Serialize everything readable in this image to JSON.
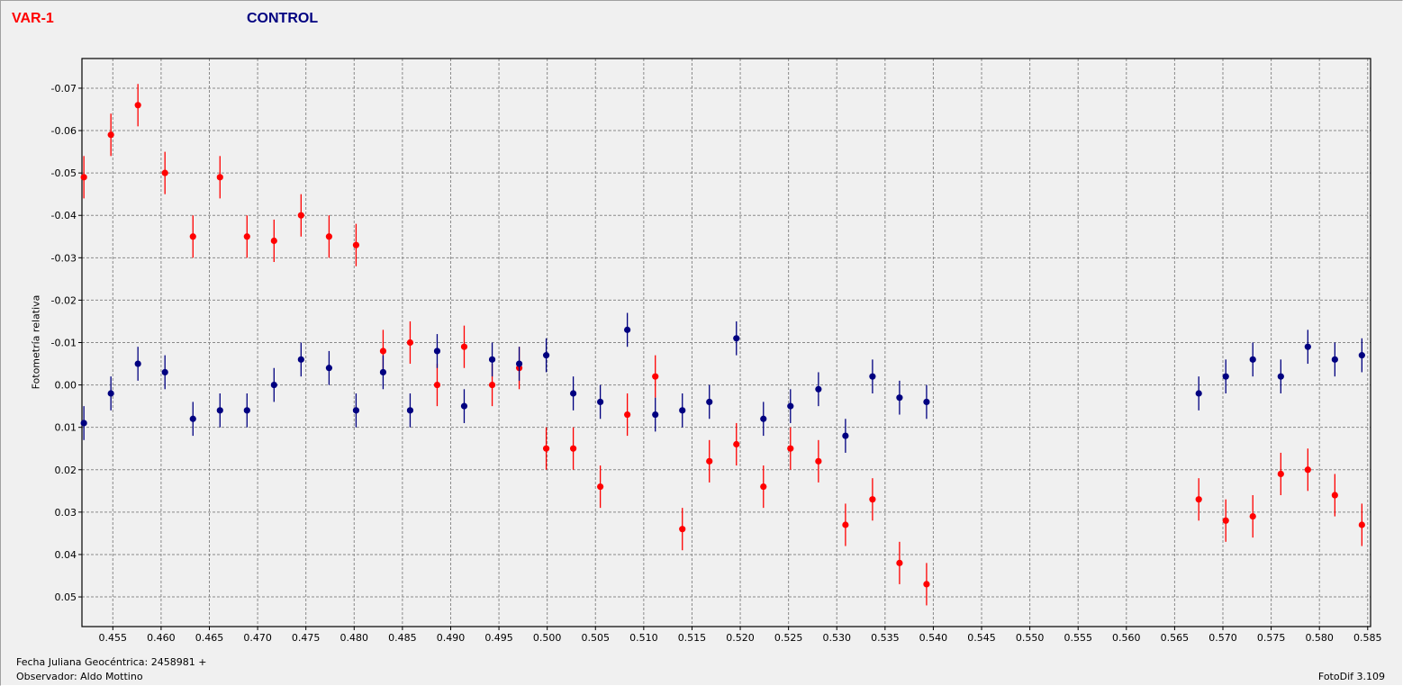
{
  "legend": {
    "var_label": "VAR-1",
    "control_label": "CONTROL"
  },
  "footer": {
    "jd_label": "Fecha Juliana Geocéntrica: 2458981 +",
    "observer_label": "Observador: Aldo Mottino",
    "version_label": "FotoDif 3.109"
  },
  "colors": {
    "var": "#ff0000",
    "control": "#000080",
    "background": "#f0f0f0",
    "grid": "#808080"
  },
  "chart_data": {
    "type": "scatter",
    "ylabel": "Fotometría relativa",
    "xlabel": "",
    "xlim": [
      0.4518,
      0.5853
    ],
    "ylim": [
      0.057,
      -0.077
    ],
    "y_inverted": true,
    "grid": true,
    "x_ticks": [
      0.455,
      0.46,
      0.465,
      0.47,
      0.475,
      0.48,
      0.485,
      0.49,
      0.495,
      0.5,
      0.505,
      0.51,
      0.515,
      0.52,
      0.525,
      0.53,
      0.535,
      0.54,
      0.545,
      0.55,
      0.555,
      0.56,
      0.565,
      0.57,
      0.575,
      0.58,
      0.585
    ],
    "x_tick_labels": [
      "0.455",
      "0.460",
      "0.465",
      "0.470",
      "0.475",
      "0.480",
      "0.485",
      "0.490",
      "0.495",
      "0.500",
      "0.505",
      "0.510",
      "0.515",
      "0.520",
      "0.525",
      "0.530",
      "0.535",
      "0.540",
      "0.545",
      "0.550",
      "0.555",
      "0.560",
      "0.565",
      "0.570",
      "0.575",
      "0.580",
      "0.585"
    ],
    "y_ticks": [
      -0.07,
      -0.06,
      -0.05,
      -0.04,
      -0.03,
      -0.02,
      -0.01,
      0.0,
      0.01,
      0.02,
      0.03,
      0.04,
      0.05
    ],
    "y_tick_labels": [
      "-0.07",
      "-0.06",
      "-0.05",
      "-0.04",
      "-0.03",
      "-0.02",
      "-0.01",
      "0.00",
      "0.01",
      "0.02",
      "0.03",
      "0.04",
      "0.05"
    ],
    "series": [
      {
        "name": "VAR-1",
        "color": "#ff0000",
        "error": 0.005,
        "x": [
          0.452,
          0.4548,
          0.4576,
          0.4604,
          0.4633,
          0.4661,
          0.4689,
          0.4717,
          0.4745,
          0.4774,
          0.4802,
          0.483,
          0.4858,
          0.4886,
          0.4914,
          0.4943,
          0.4971,
          0.4999,
          0.5027,
          0.5055,
          0.5083,
          0.5112,
          0.514,
          0.5168,
          0.5196,
          0.5224,
          0.5252,
          0.5281,
          0.5309,
          0.5337,
          0.5365,
          0.5393,
          0.5675,
          0.5703,
          0.5731,
          0.576,
          0.5788,
          0.5816,
          0.5844
        ],
        "y": [
          -0.049,
          -0.059,
          -0.066,
          -0.05,
          -0.035,
          -0.049,
          -0.035,
          -0.034,
          -0.04,
          -0.035,
          -0.033,
          -0.008,
          -0.01,
          0.0,
          -0.009,
          0.0,
          -0.004,
          0.015,
          0.015,
          0.024,
          0.007,
          -0.002,
          0.034,
          0.018,
          0.014,
          0.024,
          0.015,
          0.018,
          0.033,
          0.027,
          0.042,
          0.047,
          0.027,
          0.032,
          0.031,
          0.021,
          0.02,
          0.026,
          0.033
        ]
      },
      {
        "name": "CONTROL",
        "color": "#000080",
        "error": 0.004,
        "x": [
          0.452,
          0.4548,
          0.4576,
          0.4604,
          0.4633,
          0.4661,
          0.4689,
          0.4717,
          0.4745,
          0.4774,
          0.4802,
          0.483,
          0.4858,
          0.4886,
          0.4914,
          0.4943,
          0.4971,
          0.4999,
          0.5027,
          0.5055,
          0.5083,
          0.5112,
          0.514,
          0.5168,
          0.5196,
          0.5224,
          0.5252,
          0.5281,
          0.5309,
          0.5337,
          0.5365,
          0.5393,
          0.5675,
          0.5703,
          0.5731,
          0.576,
          0.5788,
          0.5816,
          0.5844
        ],
        "y": [
          0.009,
          0.002,
          -0.005,
          -0.003,
          0.008,
          0.006,
          0.006,
          0.0,
          -0.006,
          -0.004,
          0.006,
          -0.003,
          0.006,
          -0.008,
          0.005,
          -0.006,
          -0.005,
          -0.007,
          0.002,
          0.004,
          -0.013,
          0.007,
          0.006,
          0.004,
          -0.011,
          0.008,
          0.005,
          0.001,
          0.012,
          -0.002,
          0.003,
          0.004,
          0.002,
          -0.002,
          -0.006,
          -0.002,
          -0.009,
          -0.006,
          -0.007
        ]
      }
    ]
  }
}
